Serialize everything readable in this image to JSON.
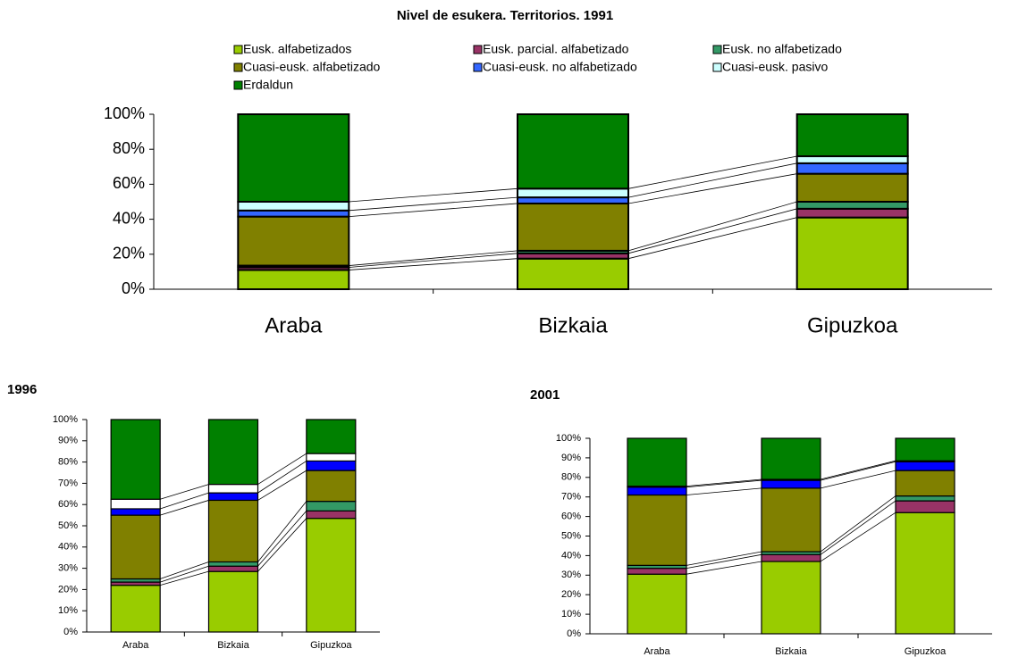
{
  "chart_data": [
    {
      "type": "bar",
      "stacked": true,
      "title": "Nivel de esukera. Territorios. 1991",
      "categories": [
        "Araba",
        "Bizkaia",
        "Gipuzkoa"
      ],
      "series": [
        {
          "name": "Eusk. alfabetizados",
          "color": "#99cc00",
          "values": [
            11,
            17.5,
            41
          ]
        },
        {
          "name": "Eusk. parcial. alfabetizado",
          "color": "#993366",
          "values": [
            1.5,
            3,
            5
          ]
        },
        {
          "name": "Eusk. no alfabetizado",
          "color": "#339966",
          "values": [
            1,
            1.5,
            4
          ]
        },
        {
          "name": "Cuasi-eusk. alfabetizado",
          "color": "#808000",
          "values": [
            28,
            27,
            16
          ]
        },
        {
          "name": "Cuasi-eusk. no alfabetizado",
          "color": "#3366ff",
          "values": [
            3.5,
            3.5,
            6
          ]
        },
        {
          "name": "Cuasi-eusk. pasivo",
          "color": "#ccffff",
          "values": [
            5,
            5,
            4
          ]
        },
        {
          "name": "Erdaldun",
          "color": "#008000",
          "values": [
            50,
            42.5,
            24
          ]
        }
      ],
      "ylim": [
        0,
        100
      ],
      "yticks": [
        {
          "value": 0,
          "label": "0%"
        },
        {
          "value": 20,
          "label": "20%"
        },
        {
          "value": 40,
          "label": "40%"
        },
        {
          "value": 60,
          "label": "60%"
        },
        {
          "value": 80,
          "label": "80%"
        },
        {
          "value": 100,
          "label": "100%"
        }
      ],
      "legend": "top"
    },
    {
      "type": "bar",
      "stacked": true,
      "title": "1996",
      "categories": [
        "Araba",
        "Bizkaia",
        "Gipuzkoa"
      ],
      "series": [
        {
          "color": "#99cc00",
          "values": [
            22,
            28.5,
            53.5
          ]
        },
        {
          "color": "#993366",
          "values": [
            1.5,
            2.5,
            3.5
          ]
        },
        {
          "color": "#339966",
          "values": [
            1.5,
            2,
            4.5
          ]
        },
        {
          "color": "#808000",
          "values": [
            30,
            29,
            14.5
          ]
        },
        {
          "color": "#0000ff",
          "values": [
            3,
            3.5,
            4.5
          ]
        },
        {
          "color": "#ffffff",
          "values": [
            4.5,
            4,
            3.5
          ]
        },
        {
          "color": "#008000",
          "values": [
            37.5,
            30.5,
            16
          ]
        }
      ],
      "ylim": [
        0,
        100
      ],
      "yticks": [
        {
          "value": 0,
          "label": "0%"
        },
        {
          "value": 10,
          "label": "10%"
        },
        {
          "value": 20,
          "label": "20%"
        },
        {
          "value": 30,
          "label": "30%"
        },
        {
          "value": 40,
          "label": "40%"
        },
        {
          "value": 50,
          "label": "50%"
        },
        {
          "value": 60,
          "label": "60%"
        },
        {
          "value": 70,
          "label": "70%"
        },
        {
          "value": 80,
          "label": "80%"
        },
        {
          "value": 90,
          "label": "90%"
        },
        {
          "value": 100,
          "label": "100%"
        }
      ]
    },
    {
      "type": "bar",
      "stacked": true,
      "title": "2001",
      "categories": [
        "Araba",
        "Bizkaia",
        "Gipuzkoa"
      ],
      "series": [
        {
          "color": "#99cc00",
          "values": [
            30.5,
            37,
            62
          ]
        },
        {
          "color": "#993366",
          "values": [
            3,
            3.5,
            6
          ]
        },
        {
          "color": "#339966",
          "values": [
            1.5,
            1.5,
            2.5
          ]
        },
        {
          "color": "#808000",
          "values": [
            36,
            32.5,
            13
          ]
        },
        {
          "color": "#0000ff",
          "values": [
            4,
            4,
            4.5
          ]
        },
        {
          "color": "#ffffff",
          "values": [
            0.5,
            0.5,
            0.5
          ]
        },
        {
          "color": "#008000",
          "values": [
            24.5,
            21,
            11.5
          ]
        }
      ],
      "ylim": [
        0,
        100
      ],
      "yticks": [
        {
          "value": 0,
          "label": "0%"
        },
        {
          "value": 10,
          "label": "10%"
        },
        {
          "value": 20,
          "label": "20%"
        },
        {
          "value": 30,
          "label": "30%"
        },
        {
          "value": 40,
          "label": "40%"
        },
        {
          "value": 50,
          "label": "50%"
        },
        {
          "value": 60,
          "label": "60%"
        },
        {
          "value": 70,
          "label": "70%"
        },
        {
          "value": 80,
          "label": "80%"
        },
        {
          "value": 90,
          "label": "90%"
        },
        {
          "value": 100,
          "label": "100%"
        }
      ]
    }
  ]
}
